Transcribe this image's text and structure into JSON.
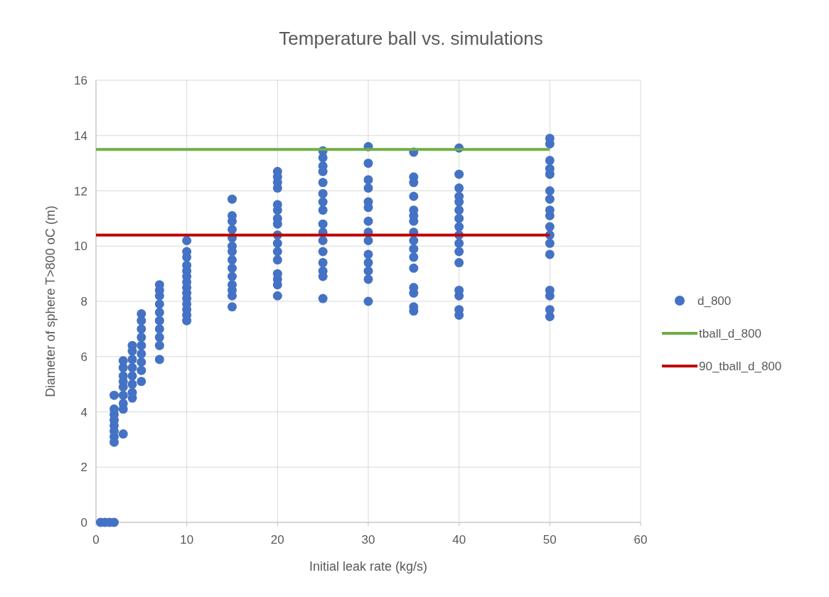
{
  "chart_data": {
    "type": "scatter",
    "title": "Temperature ball vs. simulations",
    "xlabel": "Initial leak rate (kg/s)",
    "ylabel": "Diameter of sphere T>800 oC (m)",
    "xlim": [
      0,
      60
    ],
    "xticks": [
      0,
      10,
      20,
      30,
      40,
      50,
      60
    ],
    "ylim": [
      0,
      16
    ],
    "yticks": [
      0,
      2,
      4,
      6,
      8,
      10,
      12,
      14,
      16
    ],
    "grid": true,
    "legend": "right",
    "series": [
      {
        "name": "d_800",
        "marker": "circle",
        "color": "#4472c4",
        "x": [
          0.5,
          1,
          1.5,
          2,
          2,
          2,
          2,
          2,
          2,
          2,
          2,
          2,
          3,
          3,
          3,
          3,
          3,
          3,
          3,
          3,
          3,
          4,
          4,
          4,
          4,
          4,
          4,
          4,
          4,
          5,
          5,
          5,
          5,
          5,
          5,
          5,
          5,
          5,
          7,
          7,
          7,
          7,
          7,
          7,
          7,
          7,
          7,
          7,
          10,
          10,
          10,
          10,
          10,
          10,
          10,
          10,
          10,
          10,
          10,
          10,
          10,
          10,
          15,
          15,
          15,
          15,
          15,
          15,
          15,
          15,
          15,
          15,
          15,
          15,
          15,
          15,
          20,
          20,
          20,
          20,
          20,
          20,
          20,
          20,
          20,
          20,
          20,
          20,
          20,
          20,
          20,
          20,
          25,
          25,
          25,
          25,
          25,
          25,
          25,
          25,
          25,
          25,
          25,
          25,
          25,
          25,
          25,
          25,
          30,
          30,
          30,
          30,
          30,
          30,
          30,
          30,
          30,
          30,
          30,
          30,
          30,
          30,
          35,
          35,
          35,
          35,
          35,
          35,
          35,
          35,
          35,
          35,
          35,
          35,
          35,
          35,
          35,
          35,
          40,
          40,
          40,
          40,
          40,
          40,
          40,
          40,
          40,
          40,
          40,
          40,
          40,
          40,
          40,
          40,
          50,
          50,
          50,
          50,
          50,
          50,
          50,
          50,
          50,
          50,
          50,
          50,
          50,
          50,
          50,
          50,
          50
        ],
        "values": [
          0,
          0,
          0,
          0,
          2.9,
          3.1,
          3.3,
          3.5,
          3.7,
          3.9,
          4.1,
          4.6,
          3.2,
          4.1,
          4.3,
          4.6,
          4.9,
          5.1,
          5.3,
          5.6,
          5.85,
          4.5,
          4.7,
          5.0,
          5.3,
          5.6,
          5.9,
          6.2,
          6.4,
          5.1,
          5.5,
          5.8,
          6.1,
          6.4,
          6.7,
          7.0,
          7.3,
          7.55,
          5.9,
          6.4,
          6.7,
          7.0,
          7.3,
          7.6,
          7.9,
          8.2,
          8.4,
          8.6,
          7.3,
          7.5,
          7.7,
          7.9,
          8.1,
          8.3,
          8.5,
          8.7,
          8.9,
          9.1,
          9.3,
          9.6,
          9.8,
          10.2,
          7.8,
          8.2,
          8.4,
          8.6,
          8.9,
          9.2,
          9.5,
          9.8,
          10.0,
          10.3,
          10.6,
          10.9,
          11.1,
          11.7,
          8.2,
          8.6,
          8.8,
          9.0,
          9.5,
          9.8,
          10.1,
          10.4,
          10.8,
          11.0,
          11.3,
          11.5,
          12.1,
          12.3,
          12.5,
          12.7,
          8.1,
          8.9,
          9.1,
          9.4,
          9.8,
          10.2,
          10.5,
          10.8,
          11.3,
          11.6,
          11.9,
          12.3,
          12.7,
          12.9,
          13.2,
          13.45,
          8.0,
          8.8,
          9.1,
          9.4,
          9.7,
          10.2,
          10.5,
          10.9,
          11.4,
          11.6,
          12.1,
          12.4,
          13.0,
          13.6,
          7.65,
          7.8,
          8.3,
          8.5,
          9.2,
          9.6,
          9.9,
          10.2,
          10.5,
          10.9,
          11.1,
          11.3,
          11.8,
          12.3,
          12.5,
          13.4,
          7.5,
          7.7,
          8.2,
          8.4,
          9.4,
          9.8,
          10.1,
          10.4,
          10.7,
          11.0,
          11.3,
          11.6,
          11.8,
          12.1,
          12.6,
          13.55,
          7.45,
          7.7,
          8.2,
          8.4,
          9.7,
          10.1,
          10.4,
          10.7,
          11.1,
          11.3,
          11.7,
          12.0,
          12.6,
          12.8,
          13.1,
          13.7,
          13.9
        ]
      },
      {
        "name": "tball_d_800",
        "type": "line",
        "marker": "none",
        "color": "#70ad47",
        "x": [
          0,
          50
        ],
        "values": [
          13.5,
          13.5
        ]
      },
      {
        "name": "90_tball_d_800",
        "type": "line",
        "marker": "none",
        "color": "#c00000",
        "x": [
          0,
          50
        ],
        "values": [
          10.4,
          10.4
        ]
      }
    ]
  }
}
